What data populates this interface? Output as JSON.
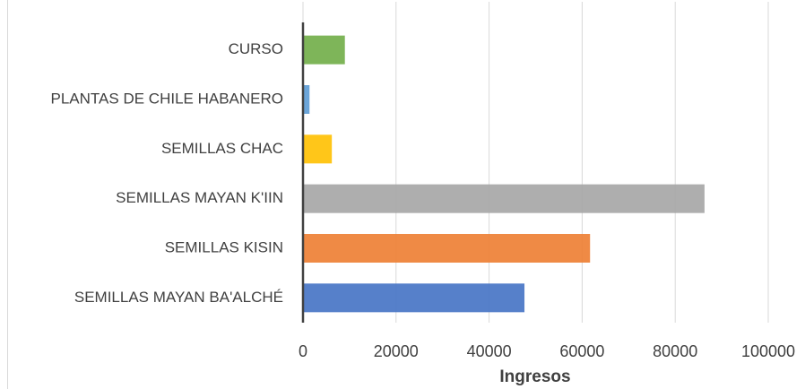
{
  "chart_data": {
    "type": "hbar",
    "categories": [
      "CURSO",
      "PLANTAS DE CHILE HABANERO",
      "SEMILLAS CHAC",
      "SEMILLAS MAYAN K'IIN",
      "SEMILLAS KISIN ",
      "SEMILLAS MAYAN BA'ALCHÉ"
    ],
    "values": [
      9000,
      1400,
      6200,
      86300,
      61700,
      47600
    ],
    "colors": [
      "#70ad47",
      "#5b9bd5",
      "#ffc000",
      "#a5a5a5",
      "#ed7d31",
      "#4472c4"
    ],
    "xlabel": "Ingresos",
    "xlim": [
      0,
      100000
    ],
    "xticks": [
      0,
      20000,
      40000,
      60000,
      80000,
      100000
    ],
    "grid": true
  }
}
